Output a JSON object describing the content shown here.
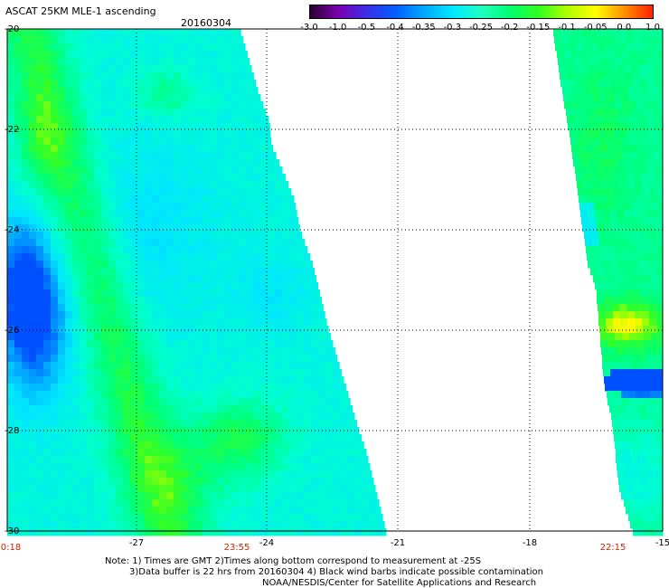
{
  "header": {
    "title": "ASCAT 25KM MLE-1 ascending",
    "date": "20160304"
  },
  "colorbar": {
    "labels": [
      "-3.0",
      "-1.0",
      "-0.5",
      "-0.4",
      "-0.35",
      "-0.3",
      "-0.25",
      "-0.2",
      "-0.15",
      "-0.1",
      "-0.05",
      "0.0",
      "1.0"
    ],
    "colors": [
      "#2a0030",
      "#7a00b0",
      "#3b2fe8",
      "#0060ff",
      "#00a8ff",
      "#00e8ff",
      "#20ffc0",
      "#00ff70",
      "#30ff20",
      "#b0ff00",
      "#ffff00",
      "#ff9000",
      "#ff2000"
    ]
  },
  "map": {
    "lat_labels": [
      "-20",
      "-22",
      "-24",
      "-26",
      "-28",
      "-30"
    ],
    "lon_labels": [
      "-27",
      "-24",
      "-21",
      "-18",
      "-15"
    ],
    "time_labels": [
      "0:18",
      "23:55",
      "22:15"
    ],
    "time_color": "#cc2200"
  },
  "notes": {
    "line1": "Note: 1) Times are GMT 2)Times along bottom correspond to measurement at -25S",
    "line2": "3)Data buffer is 22 hrs from 20160304 4) Black wind barbs indicate possible contamination",
    "line3": "NOAA/NESDIS/Center for Satellite Applications and Research"
  }
}
